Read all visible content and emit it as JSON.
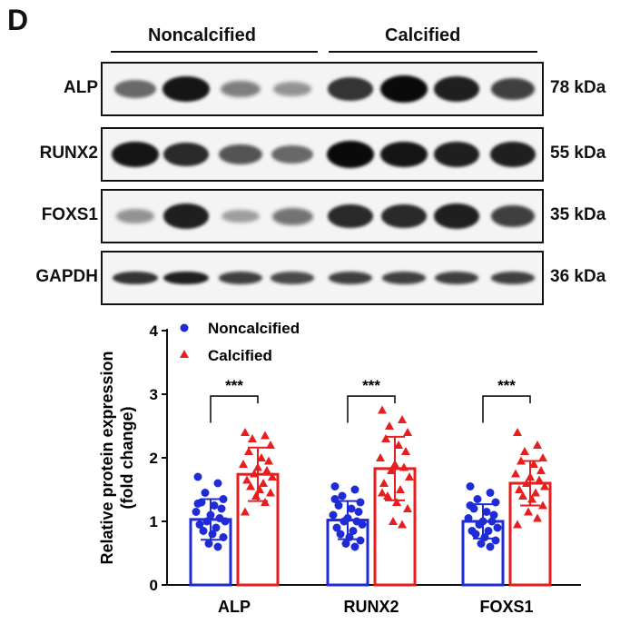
{
  "panel_letter": "D",
  "groups": [
    {
      "label": "Noncalcified",
      "lanes": 4
    },
    {
      "label": "Calcified",
      "lanes": 4
    }
  ],
  "blots": [
    {
      "protein": "ALP",
      "size": "78 kDa",
      "intensity": [
        0.55,
        0.95,
        0.45,
        0.35,
        0.8,
        1.0,
        0.9,
        0.75
      ]
    },
    {
      "protein": "RUNX2",
      "size": "55 kDa",
      "intensity": [
        0.95,
        0.85,
        0.65,
        0.55,
        1.0,
        0.95,
        0.9,
        0.9
      ]
    },
    {
      "protein": "FOXS1",
      "size": "35 kDa",
      "intensity": [
        0.35,
        0.9,
        0.3,
        0.5,
        0.85,
        0.85,
        0.9,
        0.75
      ]
    },
    {
      "protein": "GAPDH",
      "size": "36 kDa",
      "intensity": [
        0.8,
        0.9,
        0.75,
        0.7,
        0.75,
        0.75,
        0.75,
        0.75
      ]
    }
  ],
  "colors": {
    "noncalcified": "#1f2bd6",
    "calcified": "#e81e1e",
    "axis": "#111111"
  },
  "chart_data": {
    "type": "bar",
    "ylabel_line1": "Relative protein expression",
    "ylabel_line2": "(fold change)",
    "ylim": [
      0,
      4
    ],
    "yticks": [
      "0",
      "1",
      "2",
      "3",
      "4"
    ],
    "categories": [
      "ALP",
      "RUNX2",
      "FOXS1"
    ],
    "series": [
      {
        "name": "Noncalcified",
        "marker": "circle",
        "values": [
          1.03,
          1.02,
          1.0
        ],
        "errors": [
          0.32,
          0.3,
          0.27
        ]
      },
      {
        "name": "Calcified",
        "marker": "triangle",
        "values": [
          1.74,
          1.83,
          1.6
        ],
        "errors": [
          0.42,
          0.5,
          0.35
        ]
      }
    ],
    "points": [
      {
        "noncalcified": [
          1.7,
          1.6,
          1.45,
          1.35,
          1.3,
          1.25,
          1.2,
          1.15,
          1.1,
          1.05,
          1.0,
          1.0,
          0.95,
          0.9,
          0.85,
          0.8,
          0.75,
          0.65,
          0.6,
          1.28
        ],
        "calcified": [
          2.4,
          2.35,
          2.3,
          2.2,
          2.1,
          2.0,
          1.95,
          1.9,
          1.85,
          1.8,
          1.75,
          1.7,
          1.65,
          1.6,
          1.55,
          1.5,
          1.45,
          1.4,
          1.3,
          1.15
        ]
      },
      {
        "noncalcified": [
          1.55,
          1.5,
          1.4,
          1.3,
          1.25,
          1.2,
          1.15,
          1.1,
          1.05,
          1.0,
          1.0,
          0.95,
          0.9,
          0.85,
          0.8,
          0.75,
          0.7,
          0.65,
          0.6,
          1.35
        ],
        "calcified": [
          2.75,
          2.6,
          2.5,
          2.4,
          2.3,
          2.2,
          2.1,
          2.0,
          1.9,
          1.85,
          1.8,
          1.7,
          1.6,
          1.5,
          1.4,
          1.3,
          1.2,
          1.0,
          0.95,
          1.45
        ]
      },
      {
        "noncalcified": [
          1.55,
          1.45,
          1.35,
          1.3,
          1.2,
          1.15,
          1.1,
          1.05,
          1.0,
          1.0,
          0.95,
          0.9,
          0.85,
          0.85,
          0.8,
          0.75,
          0.7,
          0.65,
          0.6,
          1.25
        ],
        "calcified": [
          2.4,
          2.2,
          2.1,
          2.0,
          1.95,
          1.9,
          1.8,
          1.75,
          1.7,
          1.65,
          1.6,
          1.55,
          1.5,
          1.45,
          1.4,
          1.35,
          1.25,
          1.15,
          1.05,
          0.95
        ]
      }
    ],
    "significance": [
      "***",
      "***",
      "***"
    ],
    "legend": "top-left"
  }
}
